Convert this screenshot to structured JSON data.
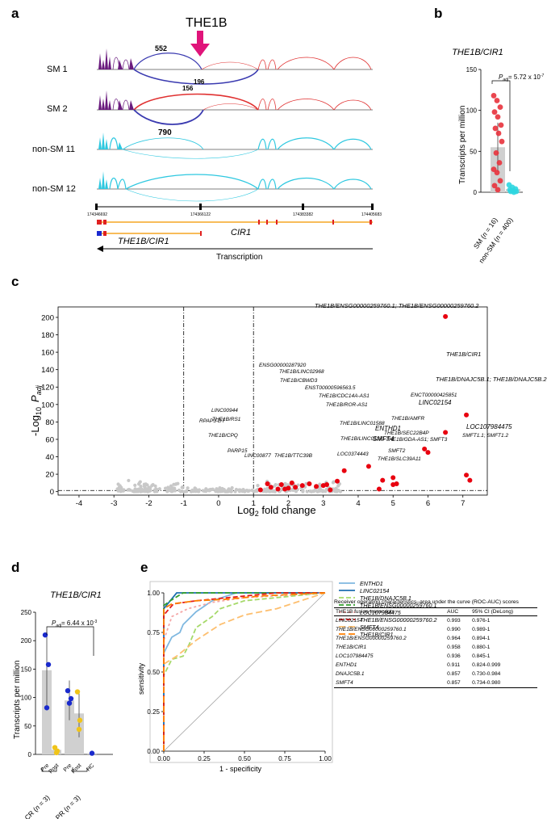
{
  "panels": {
    "a": "a",
    "b": "b",
    "c": "c",
    "d": "d",
    "e": "e"
  },
  "panel_a": {
    "insertion_label": "THE1B",
    "tracks": [
      {
        "name": "SM 1",
        "counts": [
          "552",
          "196"
        ]
      },
      {
        "name": "SM 2",
        "counts": [
          "156",
          "790"
        ]
      },
      {
        "name": "non-SM 11",
        "counts": []
      },
      {
        "name": "non-SM 12",
        "counts": []
      }
    ],
    "coordinates": [
      "174346692",
      "174366122",
      "174383382",
      "174405683"
    ],
    "genes": {
      "cir1": "CIR1",
      "fusion": "THE1B/CIR1"
    },
    "transcription": "Transcription"
  },
  "panel_b": {
    "title": "THE1B/CIR1",
    "ylabel": "Transcripts per million",
    "ylim": [
      0,
      150
    ],
    "yticks": [
      "0",
      "50",
      "100",
      "150"
    ],
    "padj_label": "P",
    "padj_sub": "adj",
    "padj_value": "= 5.72 x 10",
    "padj_exp": "-7",
    "groups": [
      {
        "label": "SM (",
        "n": "n",
        "n_val": " = 16)",
        "color": "#e8323c"
      },
      {
        "label": "non-SM (",
        "n": "n",
        "n_val": " = 400)",
        "color": "#2ed6e0"
      }
    ]
  },
  "chart_data": [
    {
      "type": "bar",
      "panel": "b",
      "title": "THE1B/CIR1",
      "ylabel": "Transcripts per million",
      "ylim": [
        0,
        150
      ],
      "categories": [
        "SM (n = 16)",
        "non-SM (n = 400)"
      ],
      "values": [
        55,
        4
      ],
      "points": [
        [
          118,
          112,
          104,
          98,
          92,
          82,
          78,
          72,
          62,
          48,
          36,
          28,
          24,
          14,
          8,
          3
        ],
        [
          9,
          6,
          4,
          3,
          2,
          1,
          1,
          0
        ]
      ],
      "annotation": "Padj = 5.72 x 10-7"
    },
    {
      "type": "scatter",
      "panel": "c",
      "xlabel": "Log2 fold change",
      "ylabel": "-Log10 Padj",
      "xlim": [
        -4.6,
        7.7
      ],
      "ylim": [
        -4,
        212
      ],
      "xticks": [
        -4,
        -3,
        -2,
        -1,
        0,
        1,
        2,
        3,
        4,
        5,
        6,
        7
      ],
      "yticks": [
        0,
        20,
        40,
        60,
        80,
        100,
        120,
        140,
        160,
        180,
        200
      ],
      "thresholds": {
        "x": [
          -1,
          1
        ],
        "y": 1.3
      },
      "highlighted": [
        {
          "x": 6.5,
          "y": 201,
          "label": "THE1B/ENSG00000259760.1; THE1B/ENSG00000259760.2"
        },
        {
          "x": 7.1,
          "y": 88,
          "label": "THE1B/CIR1"
        },
        {
          "x": 6.5,
          "y": 68,
          "label": "THE1B/DNAJC5B.1; THE1B/DNAJC5B.2"
        },
        {
          "x": 5.9,
          "y": 49,
          "label": "ENCT00000425851"
        },
        {
          "x": 6.0,
          "y": 45,
          "label": "LINC02154"
        },
        {
          "x": 4.3,
          "y": 29,
          "label": "THE1B/AMFR"
        },
        {
          "x": 3.6,
          "y": 24,
          "label": "THE1B/LINC01588"
        },
        {
          "x": 7.1,
          "y": 19,
          "label": "LOC107984475"
        },
        {
          "x": 5.0,
          "y": 16,
          "label": "ENTHD1"
        },
        {
          "x": 4.7,
          "y": 13,
          "label": "THE1B/SEC22B4P"
        },
        {
          "x": 7.2,
          "y": 13,
          "label": "SMFT1.1; SMFT1.2"
        },
        {
          "x": 3.4,
          "y": 12,
          "label": "THE1B/LINC01181"
        },
        {
          "x": 5.1,
          "y": 9,
          "label": "SMFT4"
        },
        {
          "x": 5.0,
          "y": 8,
          "label": "THE1B/GDA-AS1; SMFT3"
        },
        {
          "x": 4.6,
          "y": 3,
          "label": "SMFT2"
        },
        {
          "x": 3.2,
          "y": 2,
          "label": "THE1B/SLC39A11"
        },
        {
          "x": 3.0,
          "y": 7,
          "label": "LOC0374443"
        },
        {
          "x": 3.1,
          "y": 8,
          "label": "THE1B/ROR-AS1"
        },
        {
          "x": 2.8,
          "y": 6,
          "label": "THE1B/CDC14A-AS1"
        },
        {
          "x": 2.6,
          "y": 9,
          "label": "ENST00000596563.5"
        },
        {
          "x": 2.4,
          "y": 7,
          "label": "THE1B/CBWD3"
        },
        {
          "x": 2.2,
          "y": 5,
          "label": "THE1B/LINC02968"
        },
        {
          "x": 2.0,
          "y": 4,
          "label": "ENSG00000287920"
        },
        {
          "x": 1.7,
          "y": 3,
          "label": "THE1B/TTC39B"
        },
        {
          "x": 1.5,
          "y": 5,
          "label": "LINC00877"
        },
        {
          "x": 1.2,
          "y": 2,
          "label": "PARP15"
        },
        {
          "x": 1.4,
          "y": 9,
          "label": "THE1B/CPQ"
        },
        {
          "x": 1.8,
          "y": 8,
          "label": "THE1B/RS1"
        },
        {
          "x": 1.9,
          "y": 3,
          "label": "RPAP3-DT"
        },
        {
          "x": 2.1,
          "y": 10,
          "label": "LINC00944"
        }
      ]
    },
    {
      "type": "bar",
      "panel": "d",
      "title": "THE1B/CIR1",
      "ylabel": "Transcripts per million",
      "ylim": [
        0,
        250
      ],
      "categories": [
        "Pre",
        "Post",
        "Pre",
        "Post",
        "HC"
      ],
      "values": [
        148,
        8,
        95,
        72,
        2
      ],
      "annotation": "Padj = 6.44 x 10-3"
    },
    {
      "type": "line",
      "panel": "e",
      "xlabel": "1 - specificity",
      "ylabel": "sensitivity",
      "xlim": [
        0,
        1
      ],
      "ylim": [
        0,
        1
      ],
      "series": [
        {
          "name": "ENTHD1",
          "color": "#7fb8e0"
        },
        {
          "name": "LINC02154",
          "color": "#1f6fb0"
        },
        {
          "name": "THE1B/DNAJC5B.1",
          "color": "#a6d96a"
        },
        {
          "name": "THE1B/ENSG00000259760.1",
          "color": "#33a02c"
        },
        {
          "name": "LOC107984475",
          "color": "#f4a6a6"
        },
        {
          "name": "THE1B/ENSG00000259760.2",
          "color": "#e31a1c"
        },
        {
          "name": "SMFT4",
          "color": "#fdbf6f"
        },
        {
          "name": "THE1B/CIR1",
          "color": "#ff7f00"
        }
      ]
    }
  ],
  "panel_c": {
    "xlabel": "Log",
    "xlabel_sub": "2",
    "xlabel_rest": " fold change",
    "ylabel_pre": "-Log",
    "ylabel_sub": "10",
    "ylabel_p": "P",
    "ylabel_psub": "adj"
  },
  "panel_d": {
    "title": "THE1B/CIR1",
    "ylabel": "Transcripts per million",
    "yticks": [
      "0",
      "50",
      "100",
      "150",
      "200",
      "250"
    ],
    "padj_label": "P",
    "padj_sub": "adj",
    "padj_value": "= 6.44 x 10",
    "padj_exp": "-3",
    "groups": [
      "CR (",
      "PR ("
    ],
    "n": "n",
    "n_val": " = 3)"
  },
  "panel_e": {
    "xticks": [
      "0.00",
      "0.25",
      "0.50",
      "0.75",
      "1.00"
    ],
    "yticks": [
      "0.00",
      "0.25",
      "0.50",
      "0.75",
      "1.00"
    ],
    "table_caption": "Receiver operating characteristics–area under the curve (ROC-AUC) scores",
    "table_headers": [
      "THE1B fusion transcripts",
      "AUC",
      "95% CI (DeLong)"
    ],
    "table_rows": [
      [
        "LINC02154",
        "0.993",
        "0.976-1"
      ],
      [
        "THE1B/ENSG00000259760.1",
        "0.990",
        "0.989-1"
      ],
      [
        "THE1B/ENSG00000259760.2",
        "0.964",
        "0.894-1"
      ],
      [
        "THE1B/CIR1",
        "0.958",
        "0.880-1"
      ],
      [
        "LOC107984475",
        "0.936",
        "0.845-1"
      ],
      [
        "ENTHD1",
        "0.911",
        "0.824-0.999"
      ],
      [
        "DNAJC5B.1",
        "0.857",
        "0.730-0.984"
      ],
      [
        "SMFT4",
        "0.857",
        "0.734-0.980"
      ]
    ]
  }
}
